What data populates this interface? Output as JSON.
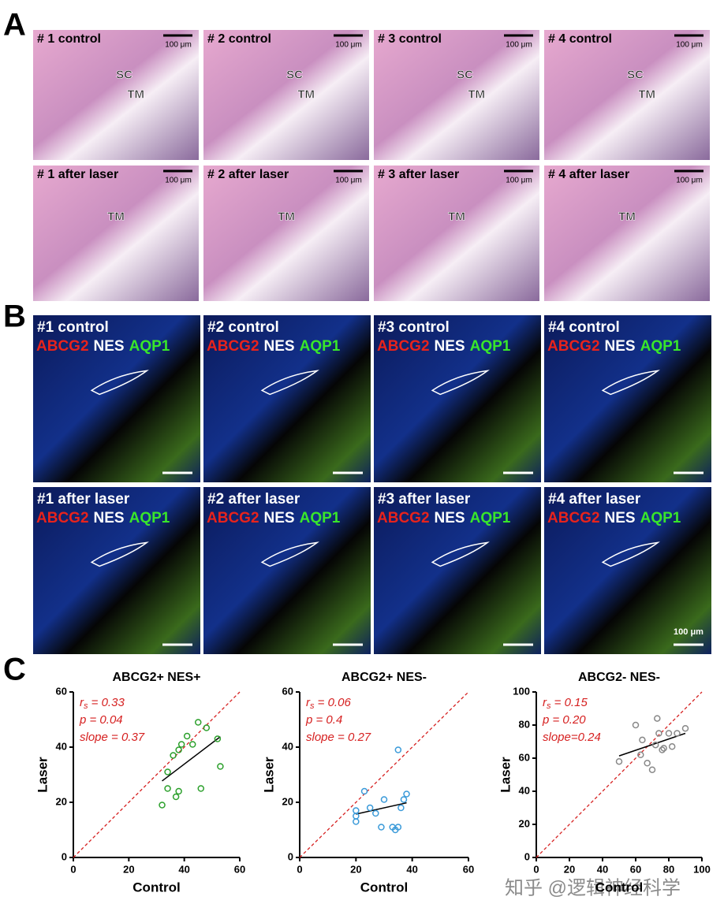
{
  "panel_a": {
    "label": "A",
    "images": [
      {
        "caption": "# 1 control",
        "scale_bar": "100 μm",
        "labels": [
          "SC",
          "TM"
        ]
      },
      {
        "caption": "# 2 control",
        "scale_bar": "100 μm",
        "labels": [
          "SC",
          "TM"
        ]
      },
      {
        "caption": "# 3 control",
        "scale_bar": "100 μm",
        "labels": [
          "SC",
          "TM"
        ]
      },
      {
        "caption": "# 4 control",
        "scale_bar": "100 μm",
        "labels": [
          "SC",
          "TM"
        ]
      },
      {
        "caption": "# 1 after laser",
        "scale_bar": "100 μm",
        "labels": [
          "TM"
        ]
      },
      {
        "caption": "# 2 after laser",
        "scale_bar": "100 μm",
        "labels": [
          "TM"
        ]
      },
      {
        "caption": "# 3 after laser",
        "scale_bar": "100 μm",
        "labels": [
          "TM"
        ]
      },
      {
        "caption": "# 4 after laser",
        "scale_bar": "100 μm",
        "labels": [
          "TM"
        ]
      }
    ]
  },
  "panel_b": {
    "label": "B",
    "images": [
      {
        "caption": "#1 control",
        "markers": [
          "ABCG2",
          "NES",
          "AQP1"
        ]
      },
      {
        "caption": "#2 control",
        "markers": [
          "ABCG2",
          "NES",
          "AQP1"
        ]
      },
      {
        "caption": "#3 control",
        "markers": [
          "ABCG2",
          "NES",
          "AQP1"
        ]
      },
      {
        "caption": "#4 control",
        "markers": [
          "ABCG2",
          "NES",
          "AQP1"
        ]
      },
      {
        "caption": "#1 after laser",
        "markers": [
          "ABCG2",
          "NES",
          "AQP1"
        ]
      },
      {
        "caption": "#2 after laser",
        "markers": [
          "ABCG2",
          "NES",
          "AQP1"
        ]
      },
      {
        "caption": "#3 after laser",
        "markers": [
          "ABCG2",
          "NES",
          "AQP1"
        ]
      },
      {
        "caption": "#4 after laser",
        "markers": [
          "ABCG2",
          "NES",
          "AQP1"
        ],
        "scale_bar": "100 μm"
      }
    ]
  },
  "panel_c": {
    "label": "C"
  },
  "chart_data": [
    {
      "type": "scatter",
      "title": "ABCG2+ NES+",
      "x_label": "Control",
      "y_label": "Laser",
      "color": "#2ca02c",
      "x": [
        32,
        34,
        34,
        36,
        37,
        38,
        38,
        39,
        41,
        43,
        45,
        46,
        48,
        52,
        53
      ],
      "values": [
        19,
        25,
        31,
        37,
        22,
        24,
        39,
        41,
        44,
        41,
        49,
        25,
        47,
        43,
        33
      ],
      "xlim": [
        0,
        60
      ],
      "ylim": [
        0,
        60
      ],
      "xticks": [
        0,
        20,
        40,
        60
      ],
      "yticks": [
        0,
        20,
        40,
        60
      ],
      "annotations": [
        {
          "symbol": "r",
          "sub": "s",
          "text": " = 0.33"
        },
        {
          "text": "p = 0.04"
        },
        {
          "text": "slope = 0.37"
        }
      ]
    },
    {
      "type": "scatter",
      "title": "ABCG2+ NES-",
      "x_label": "Control",
      "y_label": "Laser",
      "color": "#3a9ad9",
      "x": [
        20,
        20,
        20,
        23,
        25,
        27,
        29,
        30,
        33,
        34,
        35,
        35,
        36,
        37,
        38
      ],
      "values": [
        13,
        15,
        17,
        24,
        18,
        16,
        11,
        21,
        11,
        10,
        39,
        11,
        18,
        21,
        23
      ],
      "xlim": [
        0,
        60
      ],
      "ylim": [
        0,
        60
      ],
      "xticks": [
        0,
        20,
        40,
        60
      ],
      "yticks": [
        0,
        20,
        40,
        60
      ],
      "annotations": [
        {
          "symbol": "r",
          "sub": "s",
          "text": " = 0.06"
        },
        {
          "text": "p = 0.4"
        },
        {
          "text": "slope = 0.27"
        }
      ]
    },
    {
      "type": "scatter",
      "title": "ABCG2- NES-",
      "x_label": "Control",
      "y_label": "Laser",
      "color": "#888888",
      "x": [
        50,
        60,
        63,
        64,
        67,
        70,
        72,
        73,
        74,
        76,
        77,
        80,
        82,
        85,
        90
      ],
      "values": [
        58,
        80,
        62,
        71,
        57,
        53,
        68,
        84,
        75,
        65,
        66,
        75,
        67,
        75,
        78
      ],
      "xlim": [
        0,
        100
      ],
      "ylim": [
        0,
        100
      ],
      "xticks": [
        0,
        20,
        40,
        60,
        80,
        100
      ],
      "yticks": [
        0,
        20,
        40,
        60,
        80,
        100
      ],
      "annotations": [
        {
          "symbol": "r",
          "sub": "s",
          "text": " = 0.15"
        },
        {
          "text": "p = 0.20"
        },
        {
          "text": "slope=0.24"
        }
      ]
    }
  ],
  "watermark": "知乎 @逻辑神经科学"
}
